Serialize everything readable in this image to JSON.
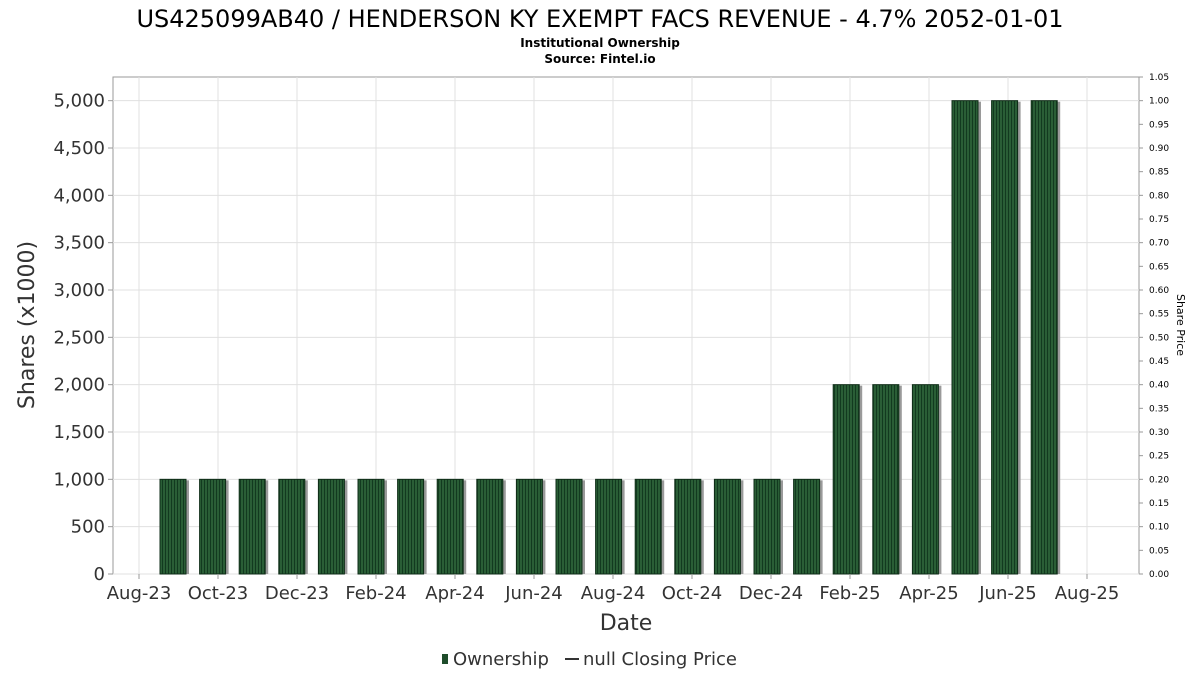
{
  "chart_data": {
    "type": "bar",
    "title": "US425099AB40 / HENDERSON KY EXEMPT FACS REVENUE - 4.7% 2052-01-01",
    "subtitle": "Institutional Ownership",
    "source": "Source: Fintel.io",
    "xlabel": "Date",
    "ylabel": "Shares (x1000)",
    "y2label": "Share Price",
    "ylim": [
      0,
      5250
    ],
    "y2lim": [
      0,
      1.05
    ],
    "yticks": [
      0,
      500,
      1000,
      1500,
      2000,
      2500,
      3000,
      3500,
      4000,
      4500,
      5000
    ],
    "ytick_labels": [
      "0",
      "500",
      "1,000",
      "1,500",
      "2,000",
      "2,500",
      "3,000",
      "3,500",
      "4,000",
      "4,500",
      "5,000"
    ],
    "y2tick_labels": [
      "0.00",
      "0.05",
      "0.10",
      "0.15",
      "0.20",
      "0.25",
      "0.30",
      "0.35",
      "0.40",
      "0.45",
      "0.50",
      "0.55",
      "0.60",
      "0.65",
      "0.70",
      "0.75",
      "0.80",
      "0.85",
      "0.90",
      "0.95",
      "1.00",
      "1.05"
    ],
    "xtick_labels": [
      "Aug-23",
      "Oct-23",
      "Dec-23",
      "Feb-24",
      "Apr-24",
      "Jun-24",
      "Aug-24",
      "Oct-24",
      "Dec-24",
      "Feb-25",
      "Apr-25",
      "Jun-25",
      "Aug-25"
    ],
    "grid": true,
    "legend_position": "bottom",
    "series": [
      {
        "name": "Ownership",
        "color": "#1e4d2b",
        "values": [
          1000,
          1000,
          1000,
          1000,
          1000,
          1000,
          1000,
          1000,
          1000,
          1000,
          1000,
          1000,
          1000,
          1000,
          1000,
          1000,
          1000,
          2000,
          2000,
          2000,
          5000,
          5000,
          5000
        ]
      },
      {
        "name": "null Closing Price",
        "color": "#333333",
        "values": []
      }
    ]
  }
}
